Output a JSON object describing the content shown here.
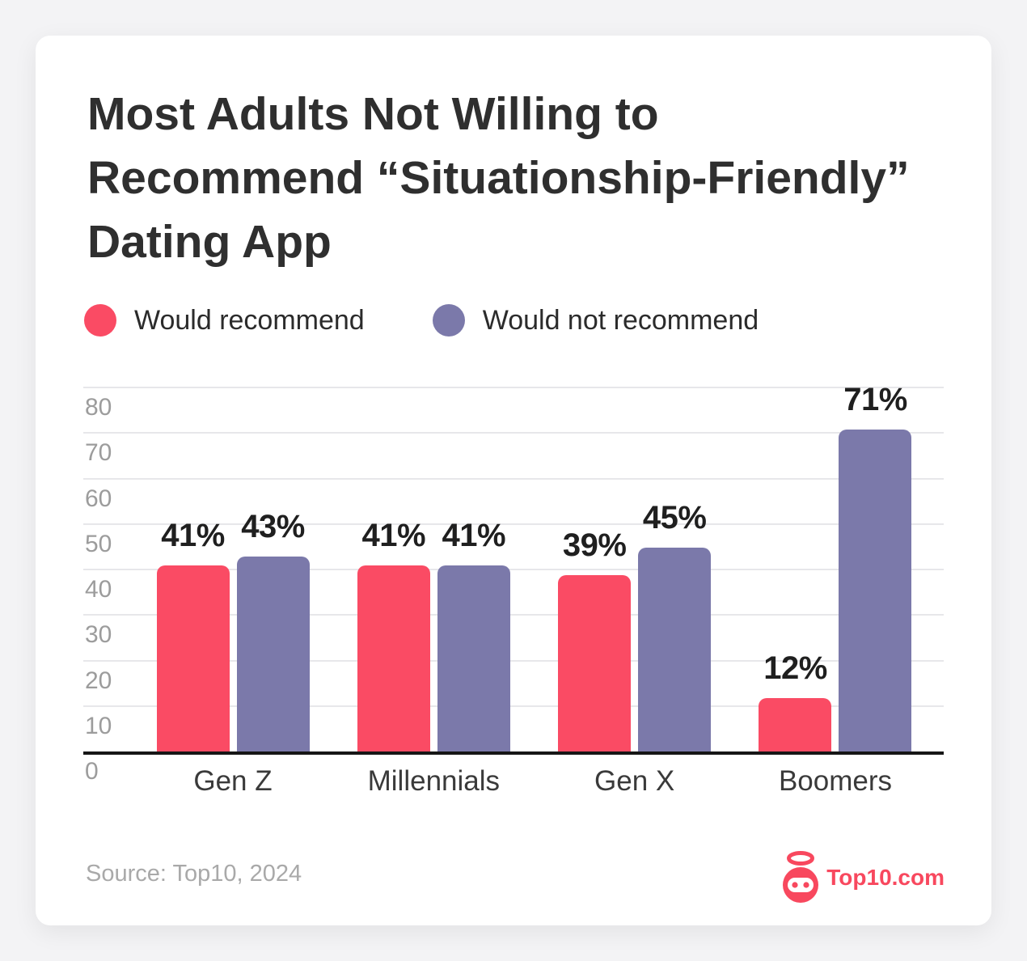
{
  "title": {
    "lines": [
      "Most Adults Not Willing to",
      "Recommend “Situationship-Friendly”",
      "Dating App"
    ]
  },
  "legend": [
    {
      "label": "Would recommend",
      "color": "#fa4b64"
    },
    {
      "label": "Would not recommend",
      "color": "#7b79aa"
    }
  ],
  "chart_data": {
    "type": "bar",
    "title": "Most Adults Not Willing to Recommend “Situationship-Friendly” Dating App",
    "categories": [
      "Gen Z",
      "Millennials",
      "Gen X",
      "Boomers"
    ],
    "series": [
      {
        "name": "Would recommend",
        "color": "#fa4b64",
        "values": [
          41,
          41,
          39,
          12
        ]
      },
      {
        "name": "Would not recommend",
        "color": "#7b79aa",
        "values": [
          43,
          41,
          45,
          71
        ]
      }
    ],
    "value_suffix": "%",
    "xlabel": "",
    "ylabel": "",
    "ylim": [
      0,
      80
    ],
    "yticks": [
      0,
      10,
      20,
      30,
      40,
      50,
      60,
      70,
      80
    ],
    "grid": true,
    "legend_position": "top"
  },
  "footer": {
    "source": "Source: Top10, 2024",
    "brand": {
      "text": "Top10.com",
      "color": "#f8485e",
      "icon": "robot-halo-icon"
    }
  }
}
